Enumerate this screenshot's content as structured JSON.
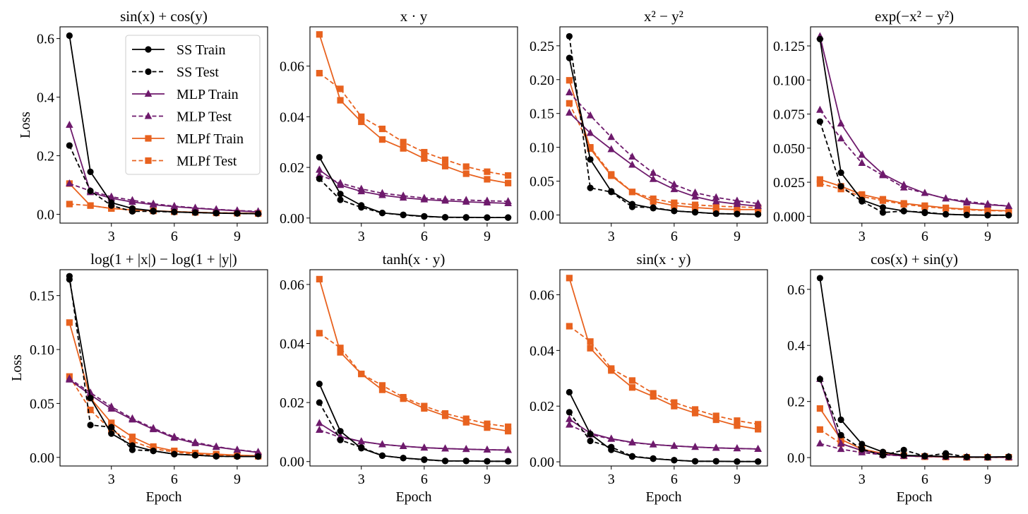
{
  "chart_data": {
    "type": "line",
    "layout": "2x4 grid of subplots",
    "shared": {
      "x": [
        1,
        2,
        3,
        4,
        5,
        6,
        7,
        8,
        9,
        10
      ],
      "xticks": [
        3,
        6,
        9
      ],
      "xlabel": "Epoch",
      "ylabel": "Loss",
      "xlim": [
        0.55,
        10.45
      ],
      "legend": {
        "placement": "upper-right",
        "panel": 0
      },
      "series_styles": [
        {
          "name": "SS Train",
          "color": "#000000",
          "dash": "solid",
          "marker": "circle"
        },
        {
          "name": "SS Test",
          "color": "#000000",
          "dash": "dashed",
          "marker": "circle"
        },
        {
          "name": "MLP Train",
          "color": "#6e1a6c",
          "dash": "solid",
          "marker": "triangle"
        },
        {
          "name": "MLP Test",
          "color": "#6e1a6c",
          "dash": "dashed",
          "marker": "triangle"
        },
        {
          "name": "MLPf Train",
          "color": "#e8621f",
          "dash": "solid",
          "marker": "square"
        },
        {
          "name": "MLPf Test",
          "color": "#e8621f",
          "dash": "dashed",
          "marker": "square"
        }
      ]
    },
    "panels": [
      {
        "title": "sin(x) + cos(y)",
        "ylim": [
          -0.03,
          0.64
        ],
        "ytick_labels": [
          "0.0",
          "0.2",
          "0.4",
          "0.6"
        ],
        "show_ylabel": true,
        "show_xlabel": false,
        "series": [
          [
            0.61,
            0.145,
            0.04,
            0.02,
            0.012,
            0.008,
            0.006,
            0.004,
            0.003,
            0.002
          ],
          [
            0.235,
            0.08,
            0.03,
            0.01,
            0.01,
            0.008,
            0.006,
            0.004,
            0.003,
            0.002
          ],
          [
            0.305,
            0.075,
            0.055,
            0.042,
            0.033,
            0.026,
            0.021,
            0.016,
            0.012,
            0.008
          ],
          [
            0.105,
            0.08,
            0.06,
            0.048,
            0.036,
            0.028,
            0.022,
            0.017,
            0.013,
            0.01
          ],
          [
            0.105,
            0.03,
            0.02,
            0.015,
            0.012,
            0.009,
            0.007,
            0.005,
            0.004,
            0.003
          ],
          [
            0.035,
            0.03,
            0.02,
            0.015,
            0.012,
            0.009,
            0.007,
            0.005,
            0.004,
            0.003
          ]
        ]
      },
      {
        "title": "x · y",
        "ylim": [
          -0.002,
          0.0755
        ],
        "ytick_labels": [
          "0.00",
          "0.02",
          "0.04",
          "0.06"
        ],
        "show_ylabel": false,
        "show_xlabel": false,
        "series": [
          [
            0.024,
            0.0095,
            0.005,
            0.002,
            0.0013,
            0.0007,
            0.0003,
            0.0003,
            0.0002,
            0.0002
          ],
          [
            0.0155,
            0.0072,
            0.0042,
            0.002,
            0.0012,
            0.0006,
            0.0003,
            0.0002,
            0.0002,
            0.0002
          ],
          [
            0.019,
            0.013,
            0.0105,
            0.009,
            0.008,
            0.0073,
            0.0068,
            0.0064,
            0.0061,
            0.0058
          ],
          [
            0.017,
            0.0138,
            0.0115,
            0.0098,
            0.0088,
            0.0079,
            0.0074,
            0.0071,
            0.0068,
            0.0066
          ],
          [
            0.0725,
            0.0465,
            0.038,
            0.031,
            0.0275,
            0.0235,
            0.0205,
            0.0175,
            0.0153,
            0.0138
          ],
          [
            0.0572,
            0.051,
            0.04,
            0.0352,
            0.03,
            0.026,
            0.023,
            0.0203,
            0.0183,
            0.0168
          ]
        ]
      },
      {
        "title": "x² − y²",
        "ylim": [
          -0.012,
          0.278
        ],
        "ytick_labels": [
          "0.00",
          "0.05",
          "0.10",
          "0.15",
          "0.20",
          "0.25"
        ],
        "show_ylabel": false,
        "show_xlabel": false,
        "series": [
          [
            0.232,
            0.082,
            0.035,
            0.016,
            0.01,
            0.006,
            0.004,
            0.002,
            0.0015,
            0.001
          ],
          [
            0.264,
            0.04,
            0.034,
            0.012,
            0.011,
            0.006,
            0.004,
            0.002,
            0.0015,
            0.001
          ],
          [
            0.151,
            0.121,
            0.097,
            0.074,
            0.053,
            0.038,
            0.027,
            0.02,
            0.016,
            0.013
          ],
          [
            0.181,
            0.147,
            0.115,
            0.086,
            0.062,
            0.045,
            0.033,
            0.026,
            0.021,
            0.017
          ],
          [
            0.199,
            0.098,
            0.058,
            0.034,
            0.02,
            0.014,
            0.011,
            0.009,
            0.008,
            0.008
          ],
          [
            0.165,
            0.1,
            0.06,
            0.034,
            0.024,
            0.018,
            0.015,
            0.013,
            0.012,
            0.011
          ]
        ]
      },
      {
        "title": "exp(−x² − y²)",
        "ylim": [
          -0.005,
          0.139
        ],
        "ytick_labels": [
          "0.000",
          "0.025",
          "0.050",
          "0.075",
          "0.100",
          "0.125"
        ],
        "show_ylabel": false,
        "show_xlabel": false,
        "series": [
          [
            0.13,
            0.032,
            0.012,
            0.0065,
            0.004,
            0.0025,
            0.0015,
            0.001,
            0.0008,
            0.0008
          ],
          [
            0.0695,
            0.022,
            0.011,
            0.0028,
            0.0038,
            0.003,
            0.0015,
            0.001,
            0.0008,
            0.0008
          ],
          [
            0.132,
            0.068,
            0.045,
            0.031,
            0.023,
            0.017,
            0.013,
            0.01,
            0.0085,
            0.0075
          ],
          [
            0.078,
            0.057,
            0.039,
            0.03,
            0.021,
            0.017,
            0.013,
            0.011,
            0.009,
            0.0075
          ],
          [
            0.027,
            0.022,
            0.016,
            0.0125,
            0.0095,
            0.0078,
            0.0062,
            0.0052,
            0.0045,
            0.004
          ],
          [
            0.024,
            0.02,
            0.0145,
            0.0115,
            0.0088,
            0.007,
            0.0058,
            0.0048,
            0.0042,
            0.0038
          ]
        ]
      },
      {
        "title": "log(1 + |x|) − log(1 + |y|)",
        "ylim": [
          -0.008,
          0.174
        ],
        "ytick_labels": [
          "0.00",
          "0.05",
          "0.10",
          "0.15"
        ],
        "show_ylabel": true,
        "show_xlabel": true,
        "series": [
          [
            0.165,
            0.055,
            0.022,
            0.011,
            0.006,
            0.003,
            0.002,
            0.001,
            0.0008,
            0.0008
          ],
          [
            0.168,
            0.03,
            0.028,
            0.007,
            0.006,
            0.003,
            0.002,
            0.001,
            0.0008,
            0.0008
          ],
          [
            0.072,
            0.058,
            0.045,
            0.035,
            0.026,
            0.018,
            0.013,
            0.0095,
            0.007,
            0.0045
          ],
          [
            0.073,
            0.06,
            0.047,
            0.036,
            0.027,
            0.019,
            0.014,
            0.01,
            0.007,
            0.005
          ],
          [
            0.125,
            0.055,
            0.032,
            0.019,
            0.01,
            0.006,
            0.004,
            0.003,
            0.002,
            0.0015
          ],
          [
            0.075,
            0.044,
            0.025,
            0.015,
            0.008,
            0.005,
            0.003,
            0.002,
            0.0015,
            0.001
          ]
        ]
      },
      {
        "title": "tanh(x · y)",
        "ylim": [
          -0.0015,
          0.065
        ],
        "ytick_labels": [
          "0.00",
          "0.02",
          "0.04",
          "0.06"
        ],
        "show_ylabel": false,
        "show_xlabel": true,
        "series": [
          [
            0.0263,
            0.0103,
            0.0045,
            0.002,
            0.0012,
            0.0007,
            0.0002,
            0.0002,
            0.0001,
            0.0001
          ],
          [
            0.02,
            0.0073,
            0.0048,
            0.002,
            0.0012,
            0.0006,
            0.0002,
            0.0002,
            0.0001,
            0.0001
          ],
          [
            0.013,
            0.0085,
            0.0068,
            0.0058,
            0.0052,
            0.0047,
            0.0044,
            0.0042,
            0.004,
            0.0039
          ],
          [
            0.0107,
            0.0082,
            0.0068,
            0.0058,
            0.0052,
            0.0047,
            0.0044,
            0.0042,
            0.004,
            0.0039
          ],
          [
            0.0618,
            0.037,
            0.0297,
            0.0243,
            0.0213,
            0.018,
            0.0155,
            0.0133,
            0.0115,
            0.0103
          ],
          [
            0.0435,
            0.0385,
            0.0297,
            0.0258,
            0.0218,
            0.0188,
            0.0163,
            0.0145,
            0.0128,
            0.0118
          ]
        ]
      },
      {
        "title": "sin(x · y)",
        "ylim": [
          -0.0015,
          0.069
        ],
        "ytick_labels": [
          "0.00",
          "0.02",
          "0.04",
          "0.06"
        ],
        "show_ylabel": false,
        "show_xlabel": true,
        "series": [
          [
            0.025,
            0.01,
            0.0043,
            0.0019,
            0.0011,
            0.0006,
            0.0002,
            0.0002,
            0.0001,
            0.0001
          ],
          [
            0.0178,
            0.0075,
            0.0053,
            0.002,
            0.0012,
            0.0006,
            0.0002,
            0.0002,
            0.0001,
            0.0001
          ],
          [
            0.0153,
            0.0103,
            0.0083,
            0.007,
            0.0062,
            0.0057,
            0.0053,
            0.005,
            0.0048,
            0.0046
          ],
          [
            0.0133,
            0.0098,
            0.0082,
            0.0069,
            0.0062,
            0.0057,
            0.0053,
            0.005,
            0.0048,
            0.0046
          ],
          [
            0.066,
            0.0408,
            0.0328,
            0.0267,
            0.0235,
            0.02,
            0.0175,
            0.0151,
            0.013,
            0.0117
          ],
          [
            0.0487,
            0.0432,
            0.0335,
            0.0292,
            0.0246,
            0.0213,
            0.0188,
            0.0165,
            0.0148,
            0.0135
          ]
        ]
      },
      {
        "title": "cos(x) + sin(y)",
        "ylim": [
          -0.03,
          0.67
        ],
        "ytick_labels": [
          "0.0",
          "0.2",
          "0.4",
          "0.6"
        ],
        "show_ylabel": false,
        "show_xlabel": true,
        "series": [
          [
            0.64,
            0.135,
            0.048,
            0.02,
            0.008,
            0.006,
            0.004,
            0.002,
            0.002,
            0.003
          ],
          [
            0.28,
            0.08,
            0.03,
            0.008,
            0.027,
            0.005,
            0.015,
            0.002,
            0.001,
            0.003
          ],
          [
            0.28,
            0.05,
            0.025,
            0.012,
            0.006,
            0.004,
            0.003,
            0.002,
            0.002,
            0.002
          ],
          [
            0.05,
            0.03,
            0.018,
            0.01,
            0.006,
            0.004,
            0.003,
            0.002,
            0.001,
            0.001
          ],
          [
            0.175,
            0.065,
            0.03,
            0.015,
            0.007,
            0.004,
            0.002,
            0.001,
            0.001,
            0.001
          ],
          [
            0.1,
            0.05,
            0.025,
            0.012,
            0.006,
            0.003,
            0.002,
            0.001,
            0.001,
            0.001
          ]
        ]
      }
    ]
  }
}
